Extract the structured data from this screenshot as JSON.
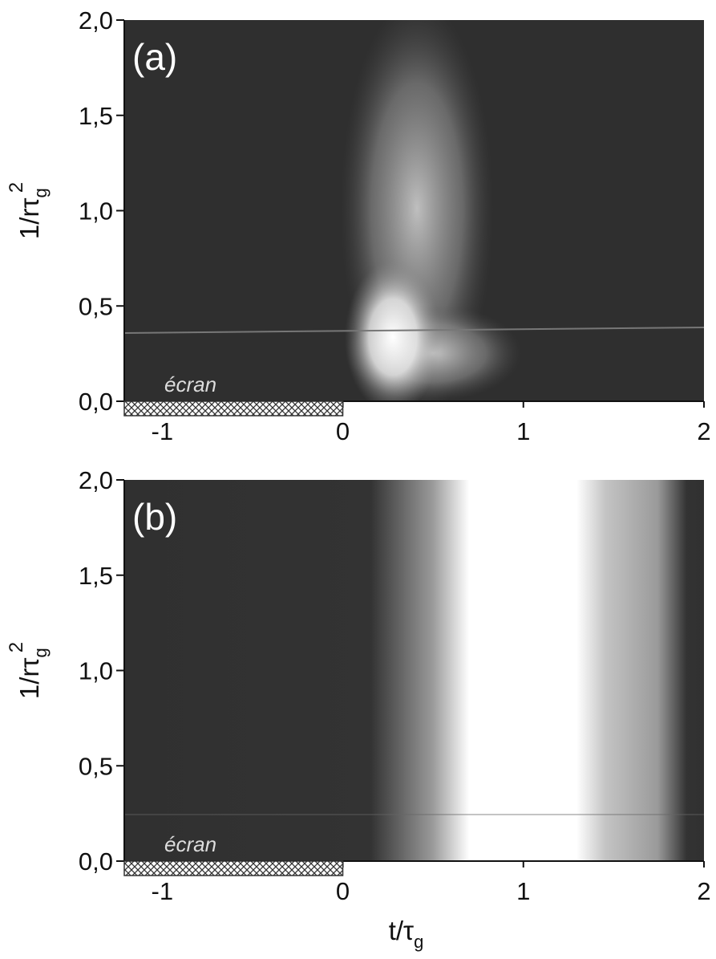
{
  "chart_data": [
    {
      "type": "heatmap",
      "panel_label": "(a)",
      "xlim": [
        -1.21,
        2
      ],
      "xticks": [
        -1,
        0,
        1,
        2
      ],
      "ylim": [
        0,
        2
      ],
      "yticks": [
        {
          "value": 0,
          "label": "0,0"
        },
        {
          "value": 0.5,
          "label": "0,5"
        },
        {
          "value": 1,
          "label": "1,0"
        },
        {
          "value": 1.5,
          "label": "1,5"
        },
        {
          "value": 2,
          "label": "2,0"
        }
      ],
      "ylabel": [
        "1/rτ",
        "g",
        "2"
      ],
      "screen": {
        "label": "écran",
        "x": [
          -1.21,
          0
        ]
      }
    },
    {
      "type": "heatmap",
      "panel_label": "(b)",
      "xlim": [
        -1.21,
        2
      ],
      "xticks": [
        -1,
        0,
        1,
        2
      ],
      "ylim": [
        0,
        2
      ],
      "yticks": [
        {
          "value": 0,
          "label": "0,0"
        },
        {
          "value": 0.5,
          "label": "0,5"
        },
        {
          "value": 1,
          "label": "1,0"
        },
        {
          "value": 1.5,
          "label": "1,5"
        },
        {
          "value": 2,
          "label": "2,0"
        }
      ],
      "ylabel": [
        "1/rτ",
        "g",
        "2"
      ],
      "xlabel": [
        "t/τ",
        "g"
      ],
      "screen": {
        "label": "écran",
        "x": [
          -1.21,
          0
        ]
      }
    }
  ]
}
